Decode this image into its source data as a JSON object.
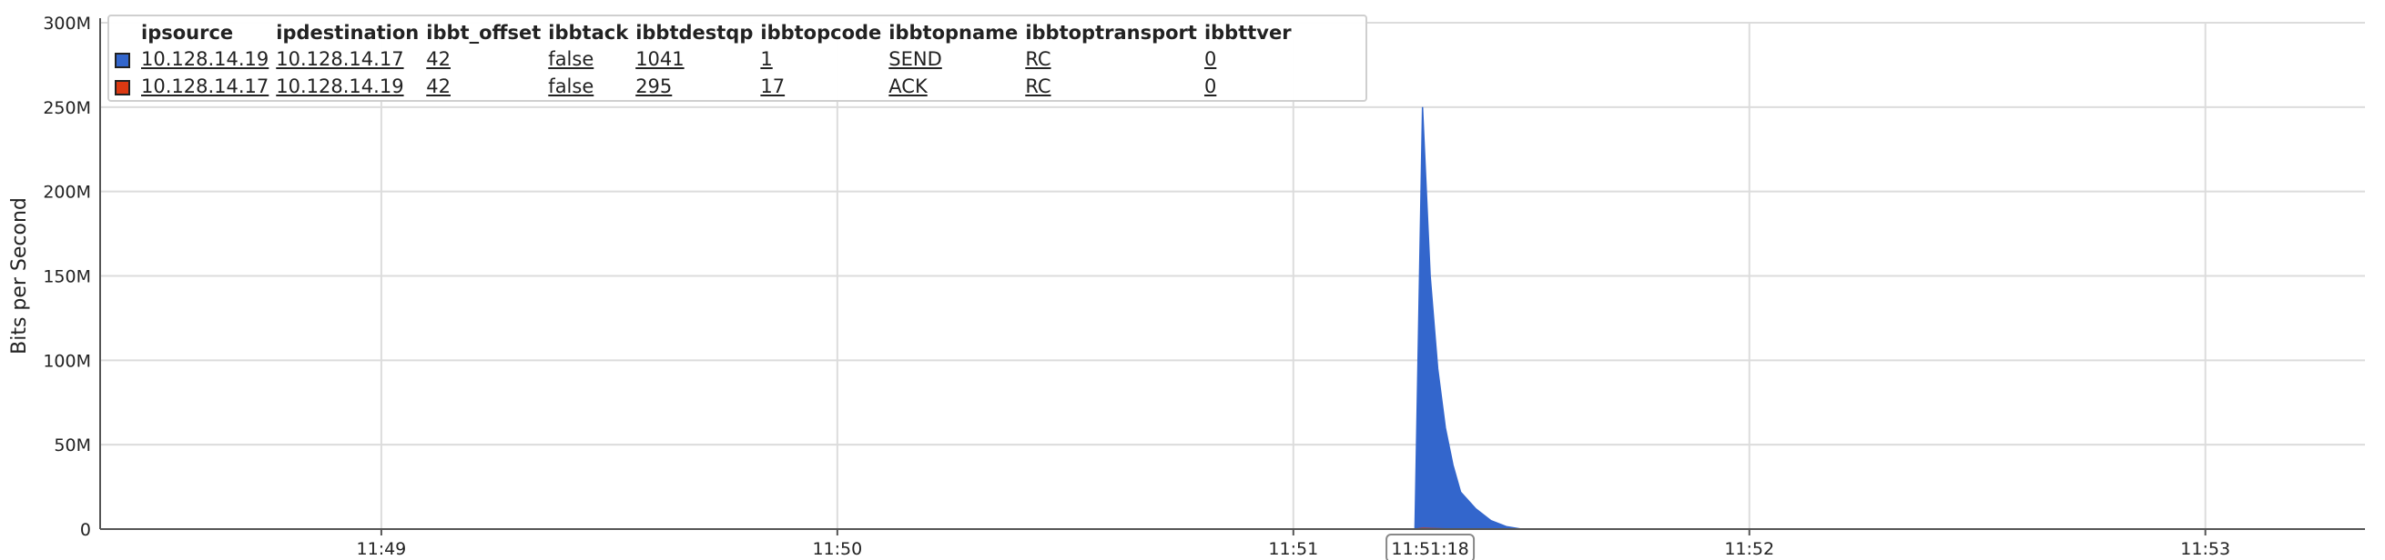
{
  "chart_data": {
    "type": "area",
    "ylabel": "Bits per Second",
    "y_ticks": [
      "0",
      "50M",
      "100M",
      "150M",
      "200M",
      "250M",
      "300M"
    ],
    "ylim": [
      0,
      300000000
    ],
    "x_ticks": [
      "11:49",
      "11:50",
      "11:51",
      "11:52",
      "11:53"
    ],
    "xlim": [
      "11:48:23",
      "11:53:21"
    ],
    "x_cursor_label": "11:51:18",
    "grid": true,
    "legend_position": "top-left",
    "series": [
      {
        "color": "#3366cc",
        "x": [
          "11:51:16",
          "11:51:17",
          "11:51:18",
          "11:51:19",
          "11:51:20",
          "11:51:21",
          "11:51:22",
          "11:51:24",
          "11:51:26",
          "11:51:28",
          "11:51:30"
        ],
        "values": [
          0,
          250000000,
          150000000,
          95000000,
          60000000,
          38000000,
          22000000,
          12000000,
          5000000,
          1500000,
          0
        ]
      },
      {
        "color": "#dc3912",
        "x": [
          "11:51:16",
          "11:51:17",
          "11:51:18",
          "11:51:20",
          "11:51:24",
          "11:51:30"
        ],
        "values": [
          0,
          500000,
          300000,
          150000,
          50000,
          0
        ]
      }
    ]
  },
  "legend": {
    "headers": [
      "ipsource",
      "ipdestination",
      "ibbt_offset",
      "ibbtack",
      "ibbtdestqp",
      "ibbtopcode",
      "ibbtopname",
      "ibbtoptransport",
      "ibbttver"
    ],
    "rows": [
      {
        "color": "#3366cc",
        "cells": [
          "10.128.14.19",
          "10.128.14.17",
          "42",
          "false",
          "1041",
          "1",
          "SEND",
          "RC",
          "0"
        ]
      },
      {
        "color": "#dc3912",
        "cells": [
          "10.128.14.17",
          "10.128.14.19",
          "42",
          "false",
          "295",
          "17",
          "ACK",
          "RC",
          "0"
        ]
      }
    ]
  }
}
